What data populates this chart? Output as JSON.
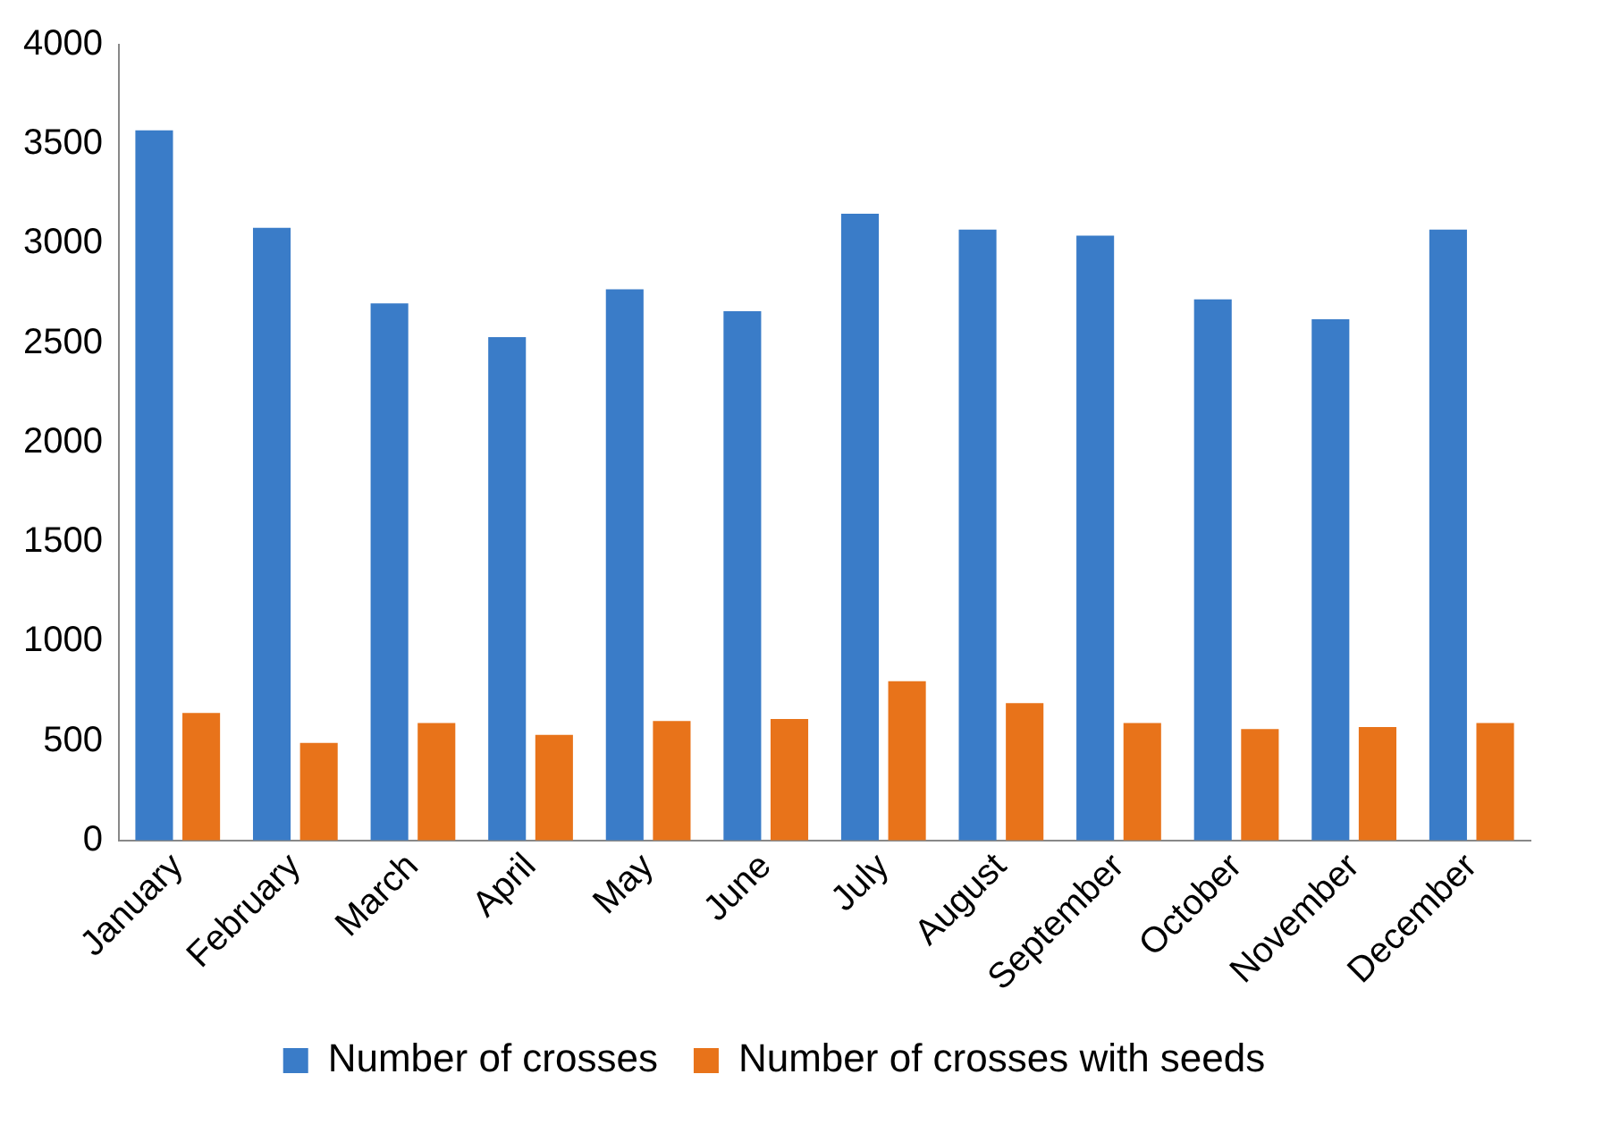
{
  "chart_data": {
    "type": "bar",
    "categories": [
      "January",
      "February",
      "March",
      "April",
      "May",
      "June",
      "July",
      "August",
      "September",
      "October",
      "November",
      "December"
    ],
    "series": [
      {
        "name": "Number of crosses",
        "color": "#3a7cc8",
        "values": [
          3570,
          3080,
          2700,
          2530,
          2770,
          2660,
          3150,
          3070,
          3040,
          2720,
          2620,
          3070
        ]
      },
      {
        "name": "Number of crosses with seeds",
        "color": "#e8731a",
        "values": [
          640,
          490,
          590,
          530,
          600,
          610,
          800,
          690,
          590,
          560,
          570,
          590
        ]
      }
    ],
    "ylim": [
      0,
      4000
    ],
    "yticks": [
      0,
      500,
      1000,
      1500,
      2000,
      2500,
      3000,
      3500,
      4000
    ],
    "grid": false,
    "legend": "bottom"
  }
}
